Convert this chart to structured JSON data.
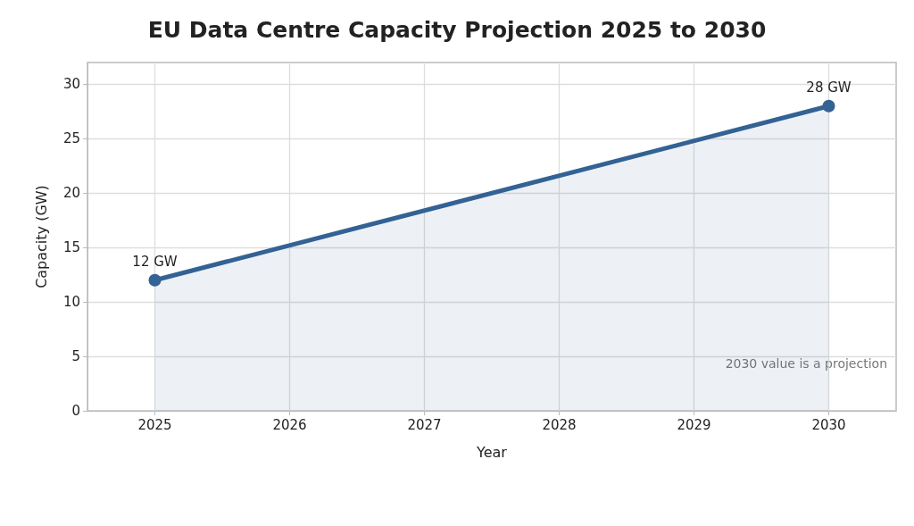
{
  "chart_data": {
    "type": "area",
    "title": "EU Data Centre Capacity Projection 2025 to 2030",
    "xlabel": "Year",
    "ylabel": "Capacity (GW)",
    "x": [
      2025,
      2030
    ],
    "series": [
      {
        "color": "#336294",
        "values": [
          12,
          28
        ],
        "value_labels": [
          "12 GW",
          "28 GW"
        ]
      }
    ],
    "xlim": [
      2024.5,
      2030.5
    ],
    "xticks": [
      2025,
      2026,
      2027,
      2028,
      2029,
      2030
    ],
    "ylim": [
      0,
      32
    ],
    "yticks": [
      0,
      5,
      10,
      15,
      20,
      25,
      30
    ],
    "annotations": [
      "2030 value is a projection"
    ],
    "grid": true,
    "marker": "circle",
    "line_style": "solid"
  }
}
